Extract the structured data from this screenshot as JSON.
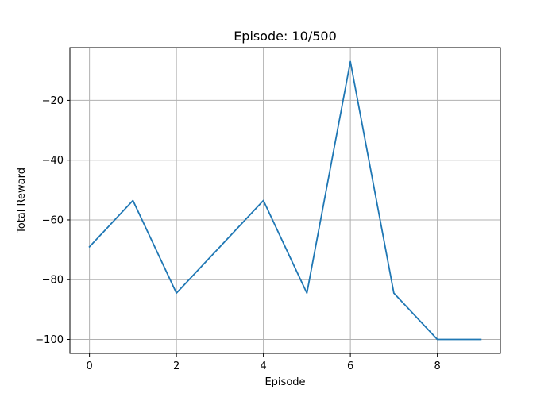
{
  "chart_data": {
    "type": "line",
    "title": "Episode: 10/500",
    "xlabel": "Episode",
    "ylabel": "Total Reward",
    "x": [
      0,
      1,
      2,
      3,
      4,
      5,
      6,
      7,
      8,
      9
    ],
    "series": [
      {
        "values": [
          -69,
          -53.5,
          -84.5,
          -69,
          -53.5,
          -84.5,
          -7,
          -84.5,
          -100,
          -100
        ],
        "color": "#1f77b4"
      }
    ],
    "xlim": [
      -0.45,
      9.45
    ],
    "ylim": [
      -104.65,
      -2.35
    ],
    "xticks": [
      0,
      2,
      4,
      6,
      8
    ],
    "yticks": [
      -100,
      -80,
      -60,
      -40,
      -20
    ],
    "xtick_labels": [
      "0",
      "2",
      "4",
      "6",
      "8"
    ],
    "ytick_labels": [
      "−100",
      "−80",
      "−60",
      "−40",
      "−20"
    ],
    "grid": true,
    "grid_color": "#b0b0b0"
  }
}
